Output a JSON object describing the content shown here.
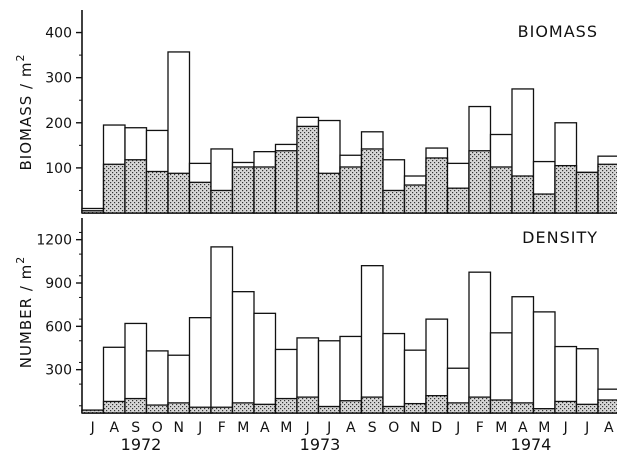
{
  "chart_data": [
    {
      "type": "bar",
      "subtype": "stacked",
      "title": "BIOMASS",
      "ylabel": "BIOMASS / m",
      "ylabel_superscript": "2",
      "ylim": [
        0,
        450
      ],
      "yticks": [
        100,
        200,
        300,
        400
      ],
      "categories": [
        "J",
        "A",
        "S",
        "O",
        "N",
        "J",
        "F",
        "M",
        "A",
        "M",
        "J",
        "J",
        "A",
        "S",
        "O",
        "N",
        "D",
        "J",
        "F",
        "M",
        "A",
        "M",
        "J",
        "J",
        "A"
      ],
      "years": [
        "1972",
        "1973",
        "1974"
      ],
      "series": [
        {
          "pattern": "stippled",
          "values": [
            5,
            108,
            118,
            92,
            88,
            68,
            50,
            102,
            102,
            138,
            192,
            88,
            102,
            142,
            50,
            62,
            122,
            55,
            138,
            102,
            82,
            42,
            105,
            90,
            108
          ]
        },
        {
          "pattern": "open",
          "values": [
            5,
            87,
            71,
            91,
            269,
            42,
            92,
            10,
            34,
            14,
            20,
            117,
            26,
            38,
            68,
            20,
            22,
            55,
            98,
            72,
            193,
            72,
            95,
            0,
            18
          ]
        }
      ]
    },
    {
      "type": "bar",
      "subtype": "stacked",
      "title": "DENSITY",
      "ylabel": "NUMBER / m",
      "ylabel_superscript": "2",
      "ylim": [
        0,
        1350
      ],
      "yticks": [
        300,
        600,
        900,
        1200
      ],
      "categories": [
        "J",
        "A",
        "S",
        "O",
        "N",
        "J",
        "F",
        "M",
        "A",
        "M",
        "J",
        "J",
        "A",
        "S",
        "O",
        "N",
        "D",
        "J",
        "F",
        "M",
        "A",
        "M",
        "J",
        "J",
        "A"
      ],
      "years": [
        "1972",
        "1973",
        "1974"
      ],
      "series": [
        {
          "pattern": "stippled",
          "values": [
            20,
            80,
            100,
            55,
            70,
            40,
            40,
            70,
            60,
            100,
            110,
            45,
            85,
            110,
            45,
            65,
            120,
            70,
            110,
            90,
            70,
            30,
            80,
            60,
            90
          ]
        },
        {
          "pattern": "open",
          "values": [
            0,
            375,
            520,
            375,
            330,
            620,
            1110,
            770,
            630,
            340,
            410,
            455,
            445,
            910,
            505,
            370,
            530,
            240,
            865,
            465,
            735,
            670,
            380,
            385,
            75
          ]
        }
      ]
    }
  ]
}
